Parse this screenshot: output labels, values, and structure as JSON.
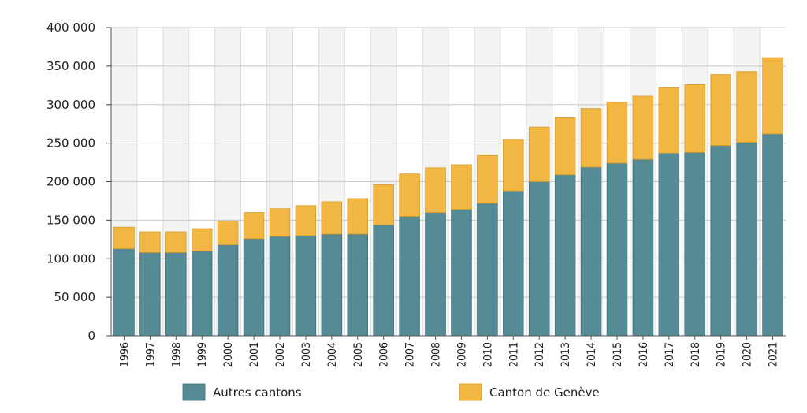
{
  "chart_data": {
    "type": "bar",
    "stacked": true,
    "title": "",
    "xlabel": "",
    "ylabel": "",
    "ylim": [
      0,
      400000
    ],
    "y_ticks": [
      0,
      50000,
      100000,
      150000,
      200000,
      250000,
      300000,
      350000,
      400000
    ],
    "y_tick_labels": [
      "0",
      "50 000",
      "100 000",
      "150 000",
      "200 000",
      "250 000",
      "300 000",
      "350 000",
      "400 000"
    ],
    "grid": "horizontal lines, alternating column shading",
    "legend_position": "bottom",
    "categories": [
      "1996",
      "1997",
      "1998",
      "1999",
      "2000",
      "2001",
      "2002",
      "2003",
      "2004",
      "2005",
      "2006",
      "2007",
      "2008",
      "2009",
      "2010",
      "2011",
      "2012",
      "2013",
      "2014",
      "2015",
      "2016",
      "2017",
      "2018",
      "2019",
      "2020",
      "2021"
    ],
    "series": [
      {
        "name": "Autres cantons",
        "color": "#558b95",
        "values": [
          113000,
          108000,
          108000,
          110000,
          118000,
          126000,
          129000,
          130000,
          132000,
          132000,
          144000,
          155000,
          160000,
          164000,
          172000,
          188000,
          200000,
          209000,
          219000,
          224000,
          229000,
          237000,
          238000,
          247000,
          251000,
          262000
        ]
      },
      {
        "name": "Canton de Genève",
        "color": "#f2b643",
        "values": [
          28000,
          27000,
          27000,
          29000,
          31000,
          34000,
          36000,
          39000,
          42000,
          46000,
          52000,
          55000,
          58000,
          58000,
          62000,
          67000,
          71000,
          74000,
          76000,
          79000,
          82000,
          85000,
          88000,
          92000,
          92000,
          99000
        ]
      }
    ]
  }
}
